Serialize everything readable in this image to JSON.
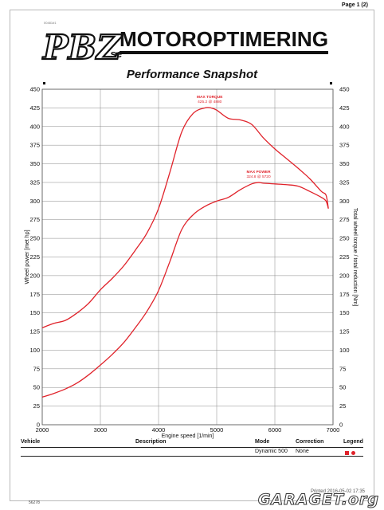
{
  "page": {
    "number": "Page 1 (2)",
    "doc_code": "00481#1",
    "printed": "Printed 2016-05-02 17:35",
    "footer_code": "56278"
  },
  "logo": {
    "pbz": "PBZ",
    "se": ".se",
    "brand": "MOTOROPTIMERING"
  },
  "watermark": {
    "text": "GARAGET.org"
  },
  "colors": {
    "curve": "#e0222a",
    "grid": "#888888",
    "text": "#111111"
  },
  "chart_data": {
    "type": "line",
    "title": "Performance Snapshot",
    "xlabel": "Engine speed [1/min]",
    "ylabel_left": "Wheel power [met hp]",
    "ylabel_right": "Total wheel torque / total reduction [Nm]",
    "xlim": [
      2000,
      7000
    ],
    "ylim": [
      0,
      450
    ],
    "x_ticks": [
      2000,
      3000,
      4000,
      5000,
      6000,
      7000
    ],
    "y_ticks": [
      0,
      25,
      50,
      75,
      100,
      125,
      150,
      175,
      200,
      225,
      250,
      275,
      300,
      325,
      350,
      375,
      400,
      425,
      450
    ],
    "grid": true,
    "series": [
      {
        "key": "torque",
        "x": [
          2000,
          2200,
          2400,
          2600,
          2800,
          3000,
          3200,
          3400,
          3600,
          3800,
          4000,
          4200,
          4400,
          4600,
          4800,
          4900,
          5000,
          5200,
          5400,
          5600,
          5800,
          6000,
          6200,
          6400,
          6600,
          6800,
          6880,
          6920
        ],
        "y": [
          130,
          136,
          140,
          150,
          163,
          181,
          196,
          213,
          234,
          257,
          290,
          340,
          393,
          418,
          425,
          425,
          422,
          411,
          409,
          403,
          385,
          370,
          357,
          344,
          330,
          313,
          308,
          290
        ]
      },
      {
        "key": "power",
        "x": [
          2000,
          2200,
          2400,
          2600,
          2800,
          3000,
          3200,
          3400,
          3600,
          3800,
          4000,
          4200,
          4400,
          4600,
          4800,
          5000,
          5200,
          5400,
          5600,
          5720,
          5800,
          6000,
          6200,
          6400,
          6600,
          6800,
          6880,
          6920
        ],
        "y": [
          37,
          42,
          48,
          56,
          67,
          80,
          94,
          110,
          130,
          152,
          180,
          220,
          262,
          282,
          293,
          300,
          305,
          315,
          323,
          325,
          324,
          323,
          322,
          320,
          313,
          305,
          300,
          290
        ]
      }
    ],
    "annotations": [
      {
        "label": "MAX TORQUE",
        "value": "425.2 @ 4880",
        "x": 4880,
        "y": 425.2
      },
      {
        "label": "MAX POWER",
        "value": "324.8 @ 5720",
        "x": 5720,
        "y": 324.8
      }
    ]
  },
  "table": {
    "headers": {
      "vehicle": "Vehicle",
      "description": "Description",
      "mode": "Mode",
      "correction": "Correction",
      "legend": "Legend"
    },
    "row": {
      "vehicle": "",
      "description": "",
      "mode": "Dynamic 500",
      "correction": "None"
    }
  }
}
